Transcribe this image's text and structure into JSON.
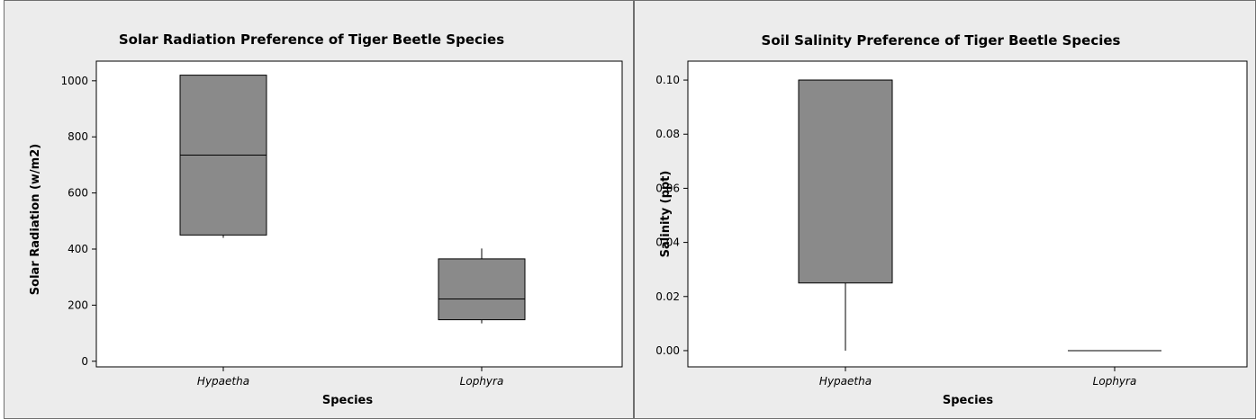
{
  "chart_data": [
    {
      "type": "box",
      "title": "Solar Radiation Preference of Tiger Beetle Species",
      "xlabel": "Species",
      "ylabel": "Solar Radiation (w/m2)",
      "ylim": [
        -20,
        1070
      ],
      "yticks": [
        0,
        200,
        400,
        600,
        800,
        1000
      ],
      "ytick_labels": [
        "0",
        "200",
        "400",
        "600",
        "800",
        "1000"
      ],
      "categories": [
        "Hypaetha",
        "Lophyra"
      ],
      "boxes": [
        {
          "min": 440,
          "q1": 450,
          "median": 735,
          "q3": 1020,
          "max": 1020
        },
        {
          "min": 135,
          "q1": 148,
          "median": 222,
          "q3": 365,
          "max": 402
        }
      ],
      "box_color": "#8a8a8a"
    },
    {
      "type": "box",
      "title": "Soil Salinity Preference of Tiger Beetle Species",
      "xlabel": "Species",
      "ylabel": "Salinity (ppt)",
      "ylim": [
        -0.006,
        0.107
      ],
      "yticks": [
        0.0,
        0.02,
        0.04,
        0.06,
        0.08,
        0.1
      ],
      "ytick_labels": [
        "0.00",
        "0.02",
        "0.04",
        "0.06",
        "0.08",
        "0.10"
      ],
      "categories": [
        "Hypaetha",
        "Lophyra"
      ],
      "boxes": [
        {
          "min": 0.0,
          "q1": 0.025,
          "median": 0.1,
          "q3": 0.1,
          "max": 0.1
        },
        {
          "min": 0.0,
          "q1": 0.0,
          "median": 0.0,
          "q3": 0.0,
          "max": 0.0
        }
      ],
      "box_color": "#8a8a8a"
    }
  ]
}
